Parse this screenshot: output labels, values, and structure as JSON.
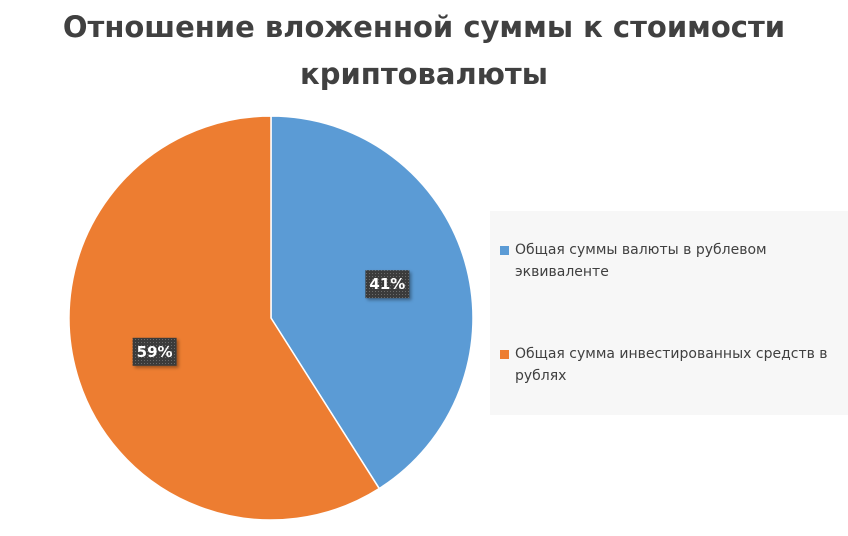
{
  "chart_data": {
    "type": "pie",
    "title": "Отношение вложенной суммы к стоимости криптовалюты",
    "categories": [
      "Общая суммы валюты в рублевом эквиваленте",
      "Общая сумма инвестированных средств в рублях"
    ],
    "values": [
      41,
      59
    ],
    "data_labels": [
      "41%",
      "59%"
    ],
    "colors": [
      "#5b9bd5",
      "#ed7d31"
    ],
    "legend_position": "right"
  }
}
